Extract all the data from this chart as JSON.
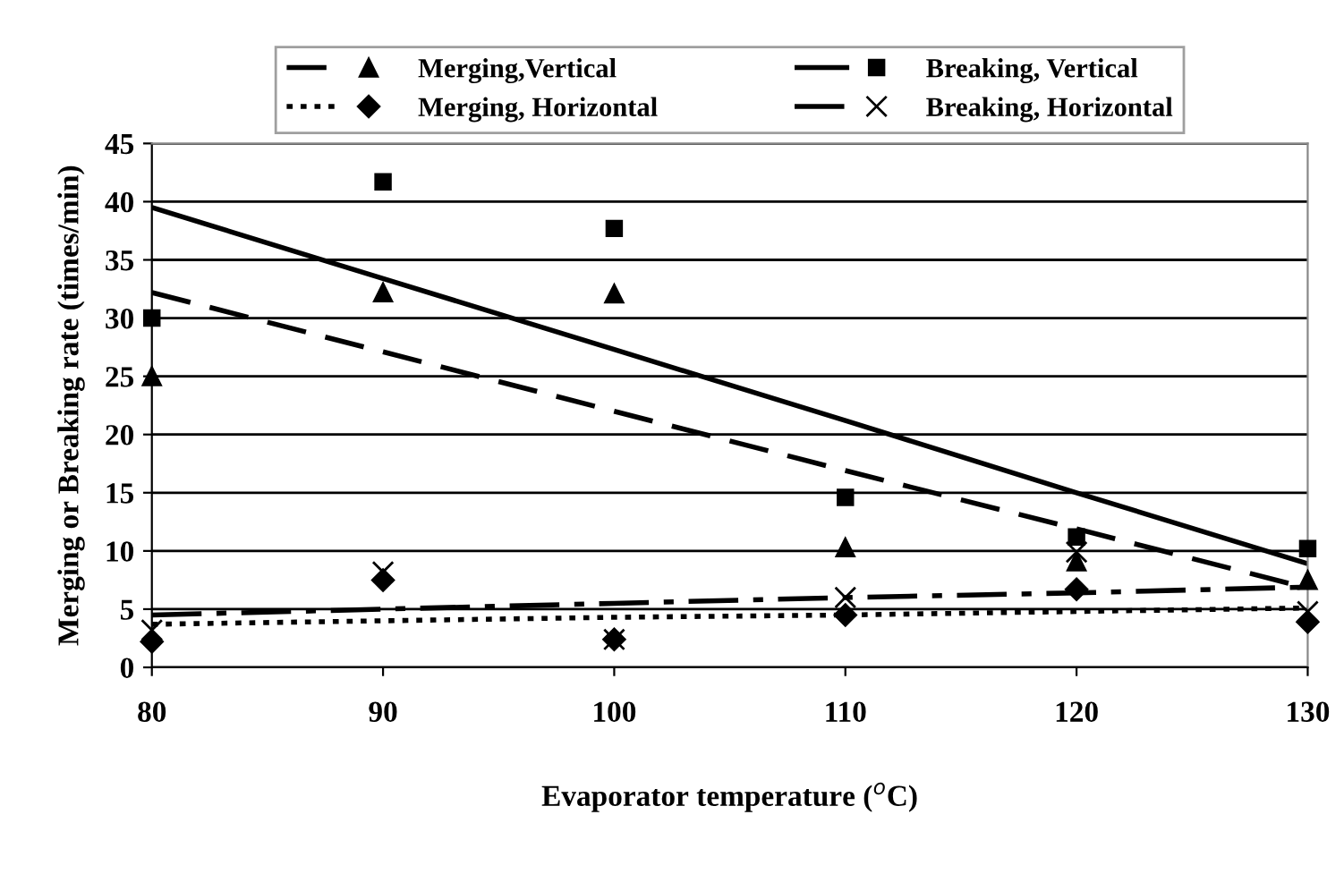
{
  "chart_data": {
    "type": "scatter",
    "xlabel": "Evaporator temperature ($^{o}$C)",
    "ylabel": "Merging or Breaking rate (times/min)",
    "xlim": [
      80,
      130
    ],
    "xticks": [
      80,
      90,
      100,
      110,
      120,
      130
    ],
    "ylim": [
      0,
      45
    ],
    "yticks": [
      0,
      5,
      10,
      15,
      20,
      25,
      30,
      35,
      40,
      45
    ],
    "grid": "y",
    "legend": "top",
    "x": [
      80,
      90,
      100,
      110,
      120,
      130
    ],
    "series": [
      {
        "name": "Merging,Vertical",
        "type": "scatter",
        "marker": "triangle",
        "color": "#000000",
        "values": [
          25,
          32.2,
          32.1,
          10.3,
          9.1,
          7.5
        ]
      },
      {
        "name": "Breaking, Vertical",
        "type": "scatter",
        "marker": "square",
        "color": "#000000",
        "values": [
          30,
          41.7,
          37.7,
          14.6,
          11.2,
          10.2
        ]
      },
      {
        "name": "Merging, Horizontal",
        "type": "scatter",
        "marker": "diamond",
        "color": "#000000",
        "values": [
          2.2,
          7.5,
          2.4,
          4.5,
          6.7,
          3.9
        ]
      },
      {
        "name": "Breaking, Horizontal",
        "type": "scatter",
        "marker": "cross",
        "color": "#000000",
        "values": [
          3.2,
          8.2,
          2.4,
          6.0,
          9.9,
          4.8
        ]
      },
      {
        "type": "line",
        "line_style": "dashed",
        "color": "#000000",
        "values": [
          32.2,
          27.1,
          22.0,
          16.9,
          11.9,
          6.8
        ]
      },
      {
        "type": "line",
        "line_style": "solid",
        "color": "#000000",
        "values": [
          39.5,
          33.4,
          27.3,
          21.2,
          15.0,
          8.9
        ]
      },
      {
        "type": "line",
        "line_style": "dotted",
        "color": "#000000",
        "values": [
          3.7,
          4.0,
          4.3,
          4.5,
          4.8,
          5.1
        ]
      },
      {
        "type": "line",
        "line_style": "dashdot",
        "color": "#000000",
        "values": [
          4.5,
          5.0,
          5.5,
          6.0,
          6.4,
          6.9
        ]
      }
    ]
  }
}
